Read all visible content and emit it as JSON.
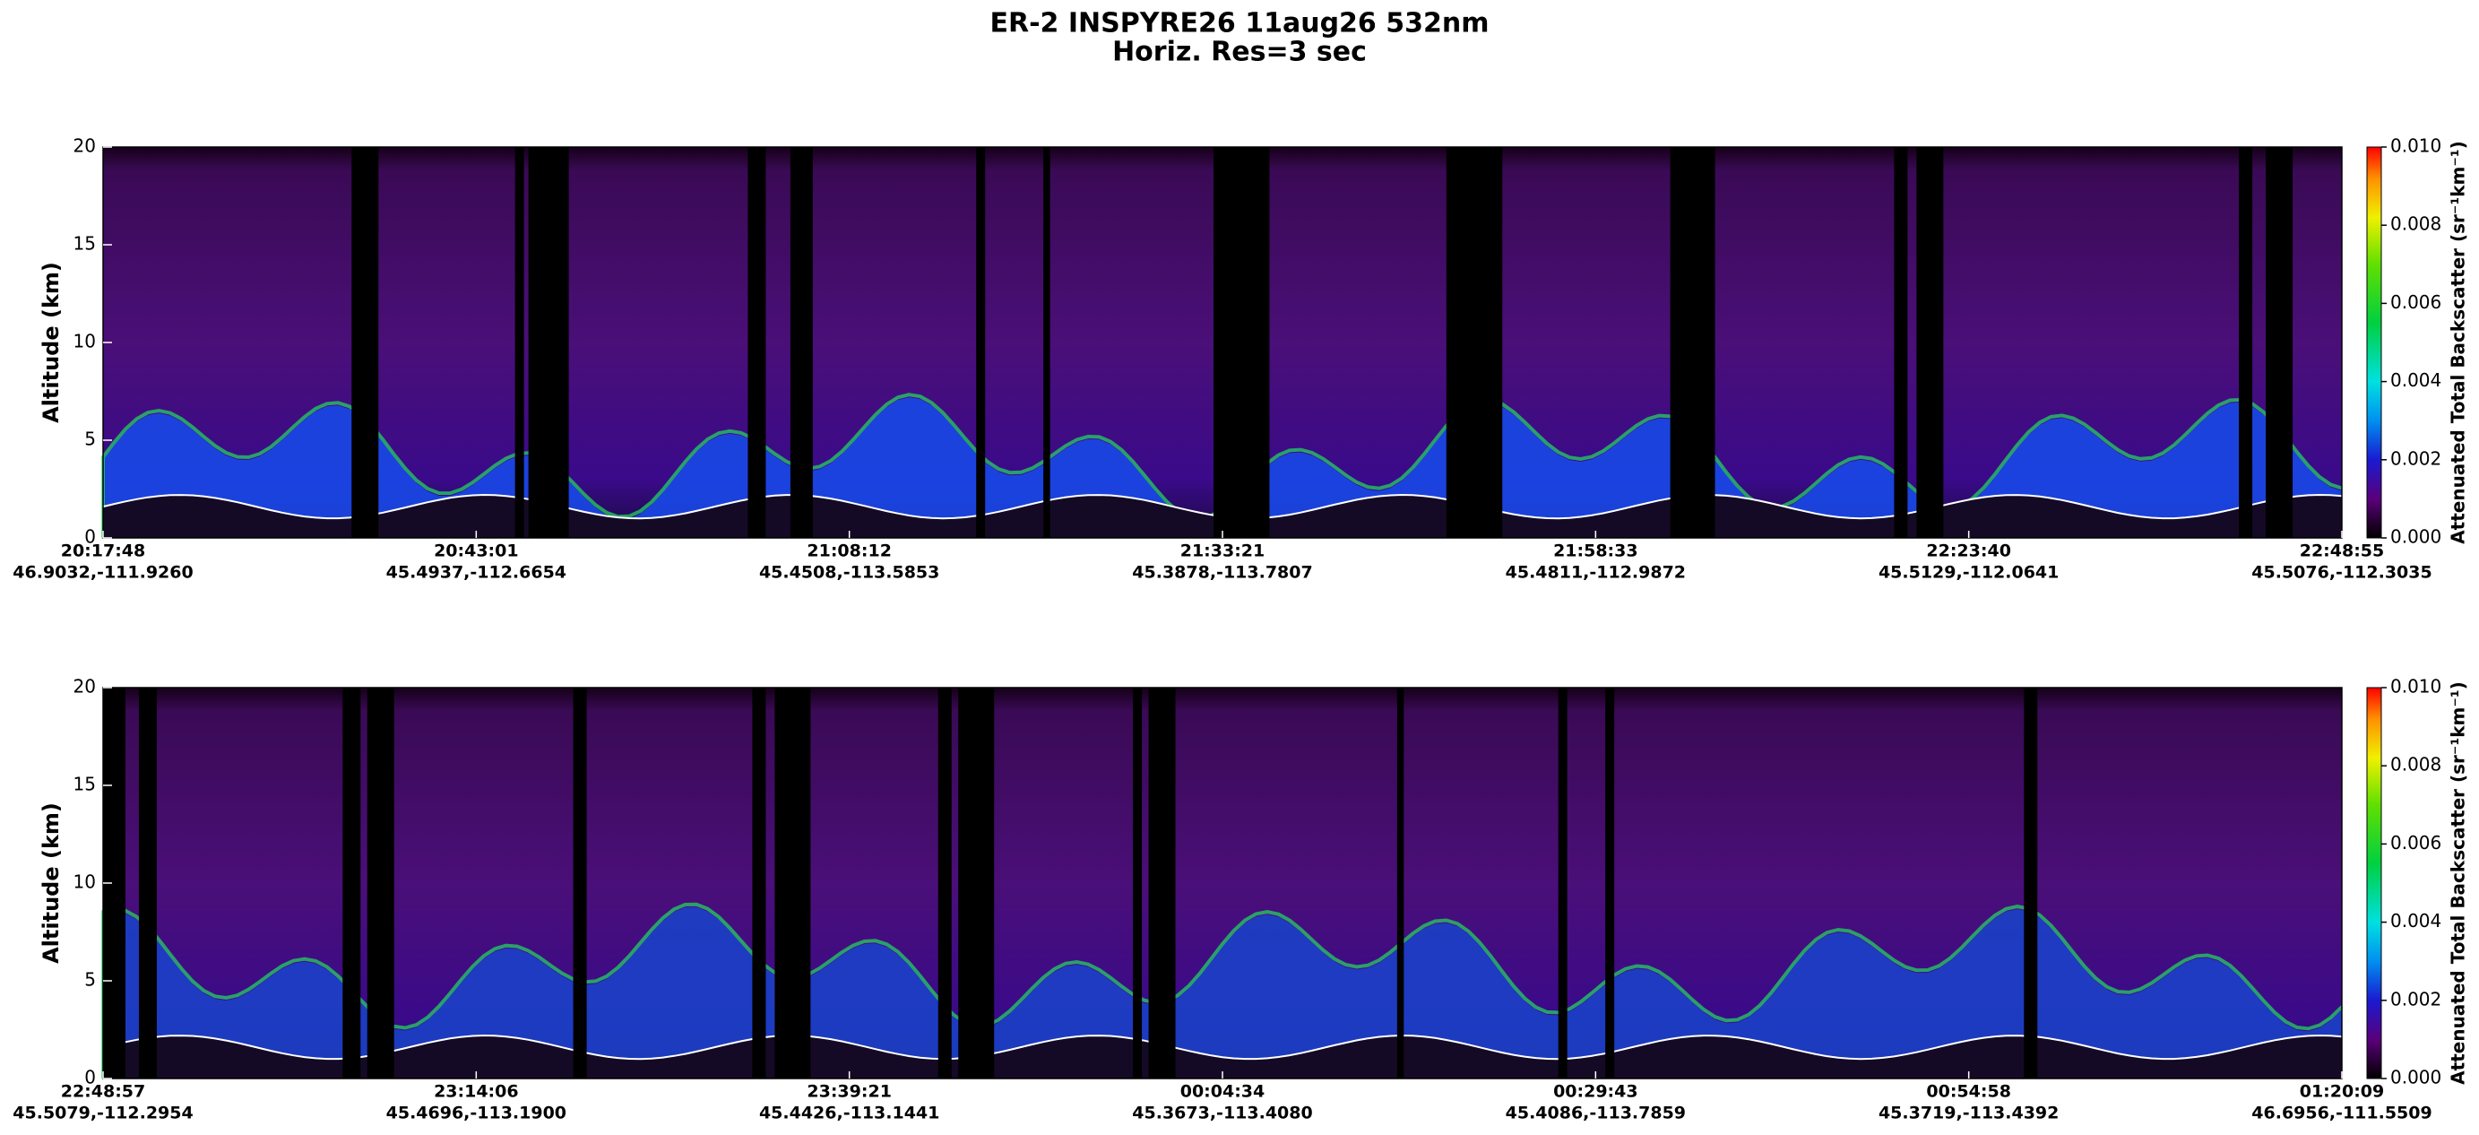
{
  "title": [
    "ER-2  INSPYRE26  11aug26  532nm",
    "Horiz. Res=3 sec"
  ],
  "chart_data": [
    {
      "type": "curtain",
      "ylabel": "Altitude (km)",
      "ylim": [
        0,
        20
      ],
      "yticks": [
        0,
        5,
        10,
        15,
        20
      ],
      "x": [
        "20:17:48",
        "20:43:01",
        "21:08:12",
        "21:33:21",
        "21:58:33",
        "22:23:40",
        "22:48:55"
      ],
      "x_positions": [
        "46.9032,-111.9260",
        "45.4937,-112.6654",
        "45.4508,-113.5853",
        "45.3878,-113.7807",
        "45.4811,-112.9872",
        "45.5129,-112.0641",
        "45.5076,-112.3035"
      ],
      "colorbar": {
        "label": "Attenuated Total Backscatter (sr⁻¹km⁻¹)",
        "lim": [
          0,
          0.01
        ],
        "ticks": [
          {
            "value": 0,
            "label": "0.000"
          },
          {
            "value": 0.002,
            "label": "0.002"
          },
          {
            "value": 0.004,
            "label": "0.004"
          },
          {
            "value": 0.006,
            "label": "0.006"
          },
          {
            "value": 0.008,
            "label": "0.008"
          },
          {
            "value": 0.01,
            "label": "0.010"
          }
        ]
      }
    },
    {
      "type": "curtain",
      "ylabel": "Altitude (km)",
      "ylim": [
        0,
        20
      ],
      "yticks": [
        0,
        5,
        10,
        15,
        20
      ],
      "x": [
        "22:48:57",
        "23:14:06",
        "23:39:21",
        "00:04:34",
        "00:29:43",
        "00:54:58",
        "01:20:09"
      ],
      "x_positions": [
        "45.5079,-112.2954",
        "45.4696,-113.1900",
        "45.4426,-113.1441",
        "45.3673,-113.4080",
        "45.4086,-113.7859",
        "45.3719,-113.4392",
        "46.6956,-111.5509"
      ],
      "colorbar": {
        "label": "Attenuated Total Backscatter (sr⁻¹km⁻¹)",
        "lim": [
          0,
          0.01
        ],
        "ticks": [
          {
            "value": 0,
            "label": "0.000"
          },
          {
            "value": 0.002,
            "label": "0.002"
          },
          {
            "value": 0.004,
            "label": "0.004"
          },
          {
            "value": 0.006,
            "label": "0.006"
          },
          {
            "value": 0.008,
            "label": "0.008"
          },
          {
            "value": 0.01,
            "label": "0.010"
          }
        ]
      }
    }
  ]
}
